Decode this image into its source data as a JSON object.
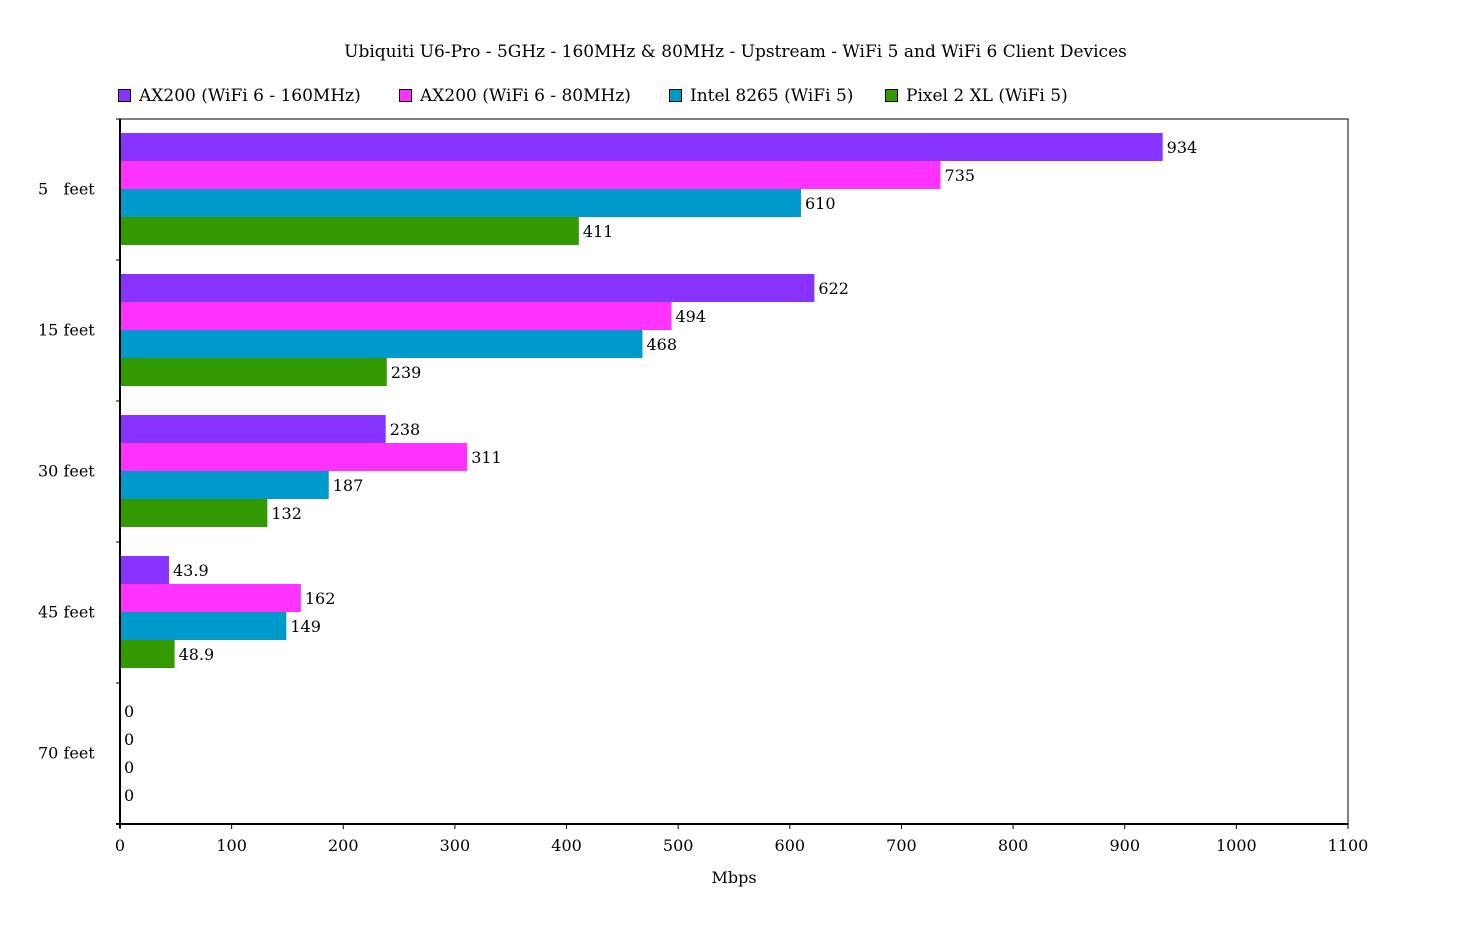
{
  "chart_data": {
    "type": "bar",
    "orientation": "horizontal",
    "title": "Ubiquiti U6-Pro - 5GHz - 160MHz & 80MHz - Upstream - WiFi 5 and WiFi 6 Client Devices",
    "xlabel": "Mbps",
    "ylabel": "",
    "xlim": [
      0,
      1100
    ],
    "x_ticks": [
      "0",
      "100",
      "200",
      "300",
      "400",
      "500",
      "600",
      "700",
      "800",
      "900",
      "1000",
      "1100"
    ],
    "categories": [
      "5   feet",
      "15 feet",
      "30 feet",
      "45 feet",
      "70 feet"
    ],
    "series": [
      {
        "name": "AX200 (WiFi 6 - 160MHz)",
        "color": "#8833ff",
        "values": [
          934,
          622,
          238,
          43.9,
          0
        ],
        "labels": [
          "934",
          "622",
          "238",
          "43.9",
          "0"
        ]
      },
      {
        "name": "AX200 (WiFi 6 - 80MHz)",
        "color": "#ff33ff",
        "values": [
          735,
          494,
          311,
          162,
          0
        ],
        "labels": [
          "735",
          "494",
          "311",
          "162",
          "0"
        ]
      },
      {
        "name": "Intel 8265 (WiFi 5)",
        "color": "#0099cc",
        "values": [
          610,
          468,
          187,
          149,
          0
        ],
        "labels": [
          "610",
          "468",
          "187",
          "149",
          "0"
        ]
      },
      {
        "name": "Pixel 2 XL (WiFi 5)",
        "color": "#339900",
        "values": [
          411,
          239,
          132,
          48.9,
          0
        ],
        "labels": [
          "411",
          "239",
          "132",
          "48.9",
          "0"
        ]
      }
    ],
    "grid": false,
    "legend_position": "top"
  }
}
